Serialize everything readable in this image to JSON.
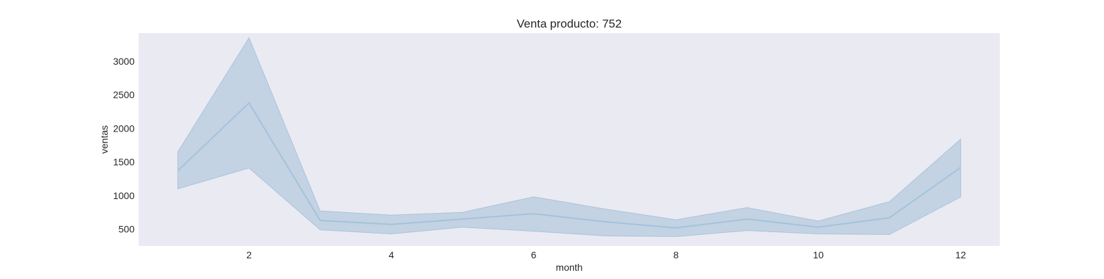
{
  "chart_data": {
    "type": "line",
    "title": "Venta producto: 752",
    "xlabel": "month",
    "ylabel": "ventas",
    "xlim": [
      0.45,
      12.55
    ],
    "ylim": [
      250,
      3420
    ],
    "x_ticks": [
      2,
      4,
      6,
      8,
      10,
      12
    ],
    "y_ticks": [
      500,
      1000,
      1500,
      2000,
      2500,
      3000
    ],
    "grid": false,
    "legend": "none",
    "x": [
      1,
      2,
      3,
      4,
      5,
      6,
      7,
      8,
      9,
      10,
      11,
      12
    ],
    "series": [
      {
        "values": [
          1370,
          2380,
          630,
          570,
          650,
          730,
          610,
          520,
          650,
          530,
          670,
          1420
        ],
        "band_lower": [
          1100,
          1410,
          490,
          430,
          530,
          470,
          400,
          390,
          480,
          430,
          420,
          980
        ],
        "band_upper": [
          1650,
          3350,
          770,
          710,
          750,
          980,
          800,
          640,
          820,
          620,
          910,
          1840
        ]
      }
    ],
    "colors": {
      "background": "#eaeaf2",
      "line": "#a4c2dc",
      "band": "#c3d3e4",
      "band_edge": "#a9c3da"
    }
  }
}
